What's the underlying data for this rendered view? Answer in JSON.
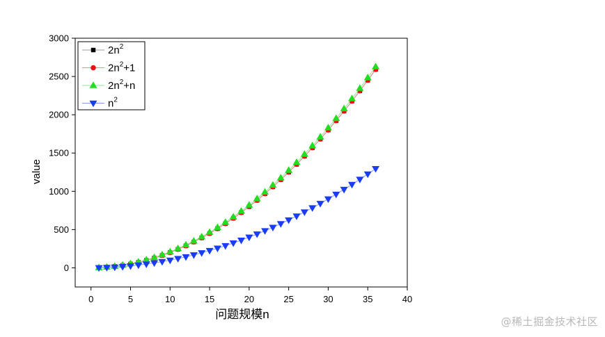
{
  "chart_data": {
    "type": "scatter",
    "title": "",
    "xlabel": "问题规模n",
    "ylabel": "value",
    "xlim": [
      -2,
      40
    ],
    "ylim": [
      -250,
      3000
    ],
    "xticks": [
      0,
      5,
      10,
      15,
      20,
      25,
      30,
      35,
      40
    ],
    "yticks": [
      0,
      500,
      1000,
      1500,
      2000,
      2500,
      3000
    ],
    "grid": false,
    "legend_position": "top-left",
    "x": [
      1,
      2,
      3,
      4,
      5,
      6,
      7,
      8,
      9,
      10,
      11,
      12,
      13,
      14,
      15,
      16,
      17,
      18,
      19,
      20,
      21,
      22,
      23,
      24,
      25,
      26,
      27,
      28,
      29,
      30,
      31,
      32,
      33,
      34,
      35,
      36
    ],
    "series": [
      {
        "name": "2n²",
        "label_base": "2n",
        "label_sup": "2",
        "label_tail": "",
        "marker": "square",
        "color": "#000000",
        "line_color": "#9a9a9a",
        "values": [
          2,
          8,
          18,
          32,
          50,
          72,
          98,
          128,
          162,
          200,
          242,
          288,
          338,
          392,
          450,
          512,
          578,
          648,
          722,
          800,
          882,
          968,
          1058,
          1152,
          1250,
          1352,
          1458,
          1568,
          1682,
          1800,
          1922,
          2048,
          2178,
          2312,
          2450,
          2592
        ]
      },
      {
        "name": "2n²+1",
        "label_base": "2n",
        "label_sup": "2",
        "label_tail": "+1",
        "marker": "circle",
        "color": "#ee1111",
        "line_color": "#f08a8a",
        "values": [
          3,
          9,
          19,
          33,
          51,
          73,
          99,
          129,
          163,
          201,
          243,
          289,
          339,
          393,
          451,
          513,
          579,
          649,
          723,
          801,
          883,
          969,
          1059,
          1153,
          1251,
          1353,
          1459,
          1569,
          1683,
          1801,
          1923,
          2049,
          2179,
          2313,
          2451,
          2593
        ]
      },
      {
        "name": "2n²+n",
        "label_base": "2n",
        "label_sup": "2",
        "label_tail": "+n",
        "marker": "triangle-up",
        "color": "#22dd22",
        "line_color": "#8fe88f",
        "values": [
          3,
          10,
          21,
          36,
          55,
          78,
          105,
          136,
          171,
          210,
          253,
          300,
          351,
          406,
          465,
          528,
          595,
          666,
          741,
          820,
          903,
          990,
          1081,
          1176,
          1275,
          1378,
          1485,
          1596,
          1711,
          1830,
          1953,
          2080,
          2211,
          2346,
          2485,
          2628
        ]
      },
      {
        "name": "n²",
        "label_base": "n",
        "label_sup": "2",
        "label_tail": "",
        "marker": "triangle-down",
        "color": "#1a3cf5",
        "line_color": "#8a9cf0",
        "values": [
          1,
          4,
          9,
          16,
          25,
          36,
          49,
          64,
          81,
          100,
          121,
          144,
          169,
          196,
          225,
          256,
          289,
          324,
          361,
          400,
          441,
          484,
          529,
          576,
          625,
          676,
          729,
          784,
          841,
          900,
          961,
          1024,
          1089,
          1156,
          1225,
          1296
        ]
      }
    ]
  },
  "watermark": "@稀土掘金技术社区"
}
